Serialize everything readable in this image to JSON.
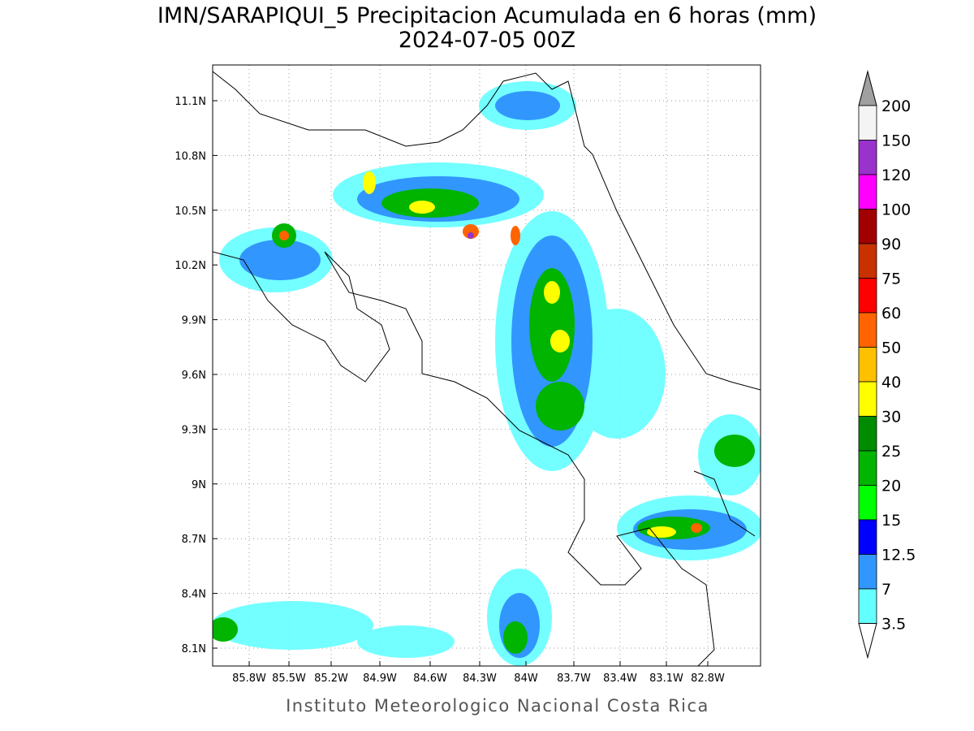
{
  "title": "IMN/SARAPIQUI_5 Precipitacion Acumulada en 6 horas (mm)",
  "subtitle": "2024-07-05 00Z",
  "map": {
    "lat_labels": [
      "11.1N",
      "10.8N",
      "10.5N",
      "10.2N",
      "9.9N",
      "9.6N",
      "9.3N",
      "9N",
      "8.7N",
      "8.4N",
      "8.1N"
    ],
    "lon_labels": [
      "85.8W",
      "85.5W",
      "85.2W",
      "84.9W",
      "84.6W",
      "84.3W",
      "84W",
      "83.7W",
      "83.4W",
      "83.1W",
      "82.8W"
    ]
  },
  "colorbar": {
    "labels": [
      "200",
      "150",
      "120",
      "100",
      "90",
      "75",
      "60",
      "50",
      "40",
      "30",
      "25",
      "20",
      "15",
      "12.5",
      "7",
      "3.5"
    ],
    "colors": [
      "#f4f4f4",
      "#9933cc",
      "#ff00ff",
      "#a00000",
      "#c83200",
      "#ff0000",
      "#ff6400",
      "#ffc000",
      "#ffff00",
      "#008c00",
      "#00b400",
      "#00ff00",
      "#0000ff",
      "#3296ff",
      "#64ffff"
    ]
  },
  "footer": "Instituto Meteorologico Nacional Costa Rica"
}
